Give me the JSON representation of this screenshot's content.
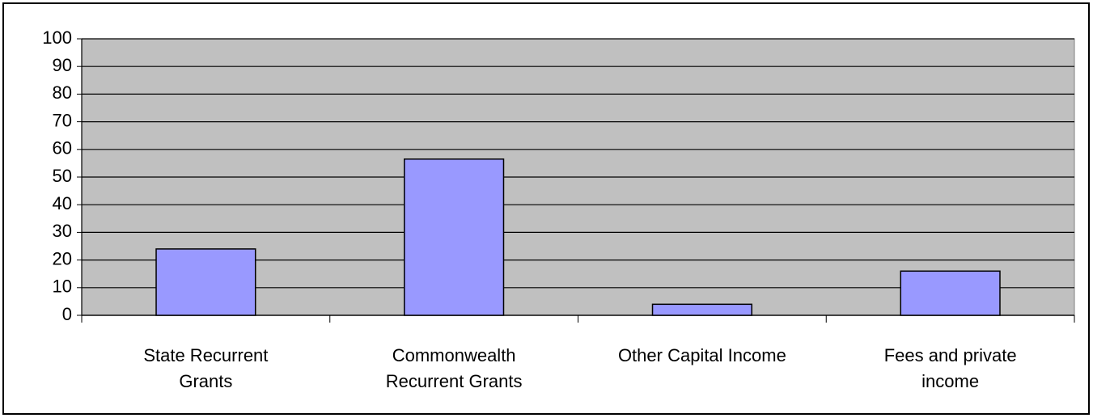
{
  "chart_data": {
    "type": "bar",
    "categories": [
      "State Recurrent\nGrants",
      "Commonwealth\nRecurrent Grants",
      "Other Capital Income",
      "Fees and private\nincome"
    ],
    "values": [
      24,
      56.5,
      4,
      16
    ],
    "color": "#9999ff",
    "ylim": [
      0,
      100
    ],
    "yticks": [
      0,
      10,
      20,
      30,
      40,
      50,
      60,
      70,
      80,
      90,
      100
    ],
    "grid": true
  }
}
